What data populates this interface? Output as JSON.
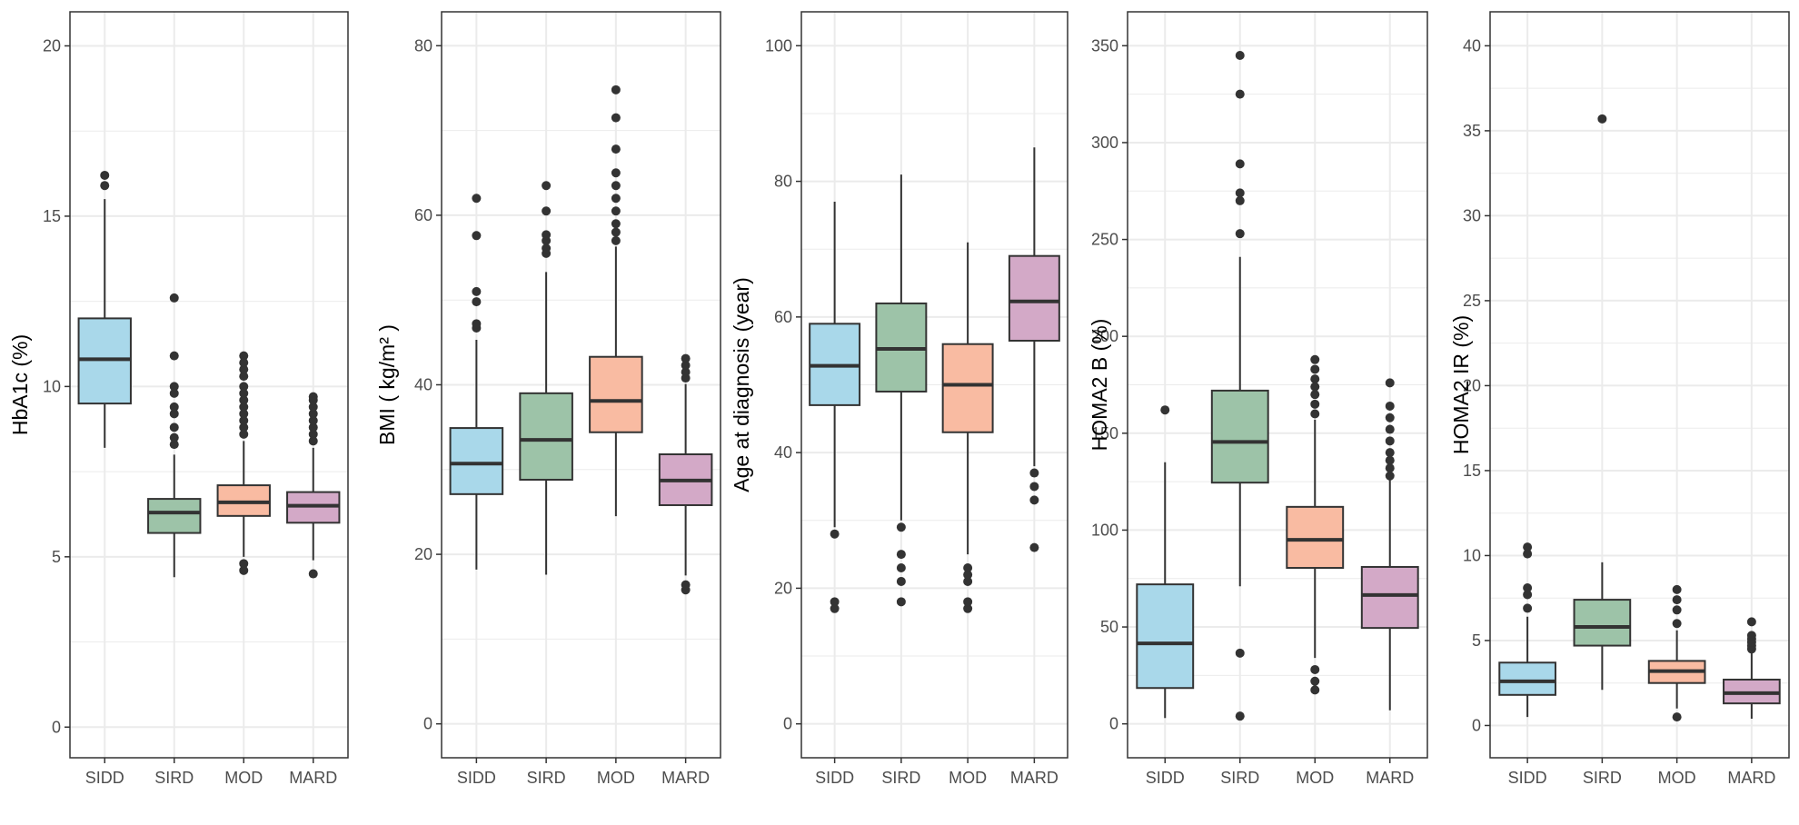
{
  "colors": {
    "SIDD": "#a9d8ea",
    "SIRD": "#9dc3a8",
    "MOD": "#f9bba2",
    "MARD": "#d3a9c7",
    "grid": "#ebebeb",
    "frame": "#333333",
    "point": "#333333"
  },
  "chart_data": [
    {
      "type": "box",
      "ylabel": "HbA1c (%)",
      "ylim": [
        -0.9,
        21
      ],
      "yticks": [
        0,
        5,
        10,
        15,
        20
      ],
      "categories": [
        "SIDD",
        "SIRD",
        "MOD",
        "MARD"
      ],
      "boxes": [
        {
          "min": 8.2,
          "q1": 9.5,
          "median": 10.8,
          "q3": 12.0,
          "max": 15.5,
          "outliers": [
            15.9,
            16.2
          ]
        },
        {
          "min": 4.4,
          "q1": 5.7,
          "median": 6.3,
          "q3": 6.7,
          "max": 8.0,
          "outliers": [
            8.3,
            8.5,
            8.8,
            9.2,
            9.4,
            9.8,
            10.0,
            10.9,
            12.6
          ]
        },
        {
          "min": 5.0,
          "q1": 6.2,
          "median": 6.6,
          "q3": 7.1,
          "max": 8.4,
          "outliers": [
            4.6,
            4.8,
            8.6,
            8.8,
            9.0,
            9.2,
            9.4,
            9.6,
            9.8,
            10.0,
            10.3,
            10.5,
            10.7,
            10.9
          ]
        },
        {
          "min": 4.9,
          "q1": 6.0,
          "median": 6.5,
          "q3": 6.9,
          "max": 8.2,
          "outliers": [
            4.5,
            8.4,
            8.6,
            8.8,
            9.0,
            9.2,
            9.4,
            9.6,
            9.7
          ]
        }
      ]
    },
    {
      "type": "box",
      "ylabel": "BMI ( kg/m² )",
      "ylim": [
        -4,
        84
      ],
      "yticks": [
        0,
        20,
        40,
        60,
        80
      ],
      "categories": [
        "SIDD",
        "SIRD",
        "MOD",
        "MARD"
      ],
      "boxes": [
        {
          "min": 18.2,
          "q1": 27.1,
          "median": 30.7,
          "q3": 34.9,
          "max": 45.3,
          "outliers": [
            46.7,
            47.2,
            49.8,
            51.0,
            57.6,
            62.0
          ]
        },
        {
          "min": 17.6,
          "q1": 28.8,
          "median": 33.5,
          "q3": 39.0,
          "max": 53.3,
          "outliers": [
            55.5,
            56.1,
            57.0,
            57.7,
            60.5,
            63.5
          ]
        },
        {
          "min": 24.5,
          "q1": 34.4,
          "median": 38.1,
          "q3": 43.3,
          "max": 56.3,
          "outliers": [
            57.0,
            58.0,
            59.0,
            60.5,
            62.0,
            63.5,
            65.0,
            67.8,
            71.5,
            74.8
          ]
        },
        {
          "min": 17.5,
          "q1": 25.8,
          "median": 28.7,
          "q3": 31.8,
          "max": 40.1,
          "outliers": [
            15.8,
            16.4,
            40.8,
            41.5,
            42.3,
            43.1
          ]
        }
      ]
    },
    {
      "type": "box",
      "ylabel": "Age at diagnosis (year)",
      "ylim": [
        -5,
        105
      ],
      "yticks": [
        0,
        20,
        40,
        60,
        80,
        100
      ],
      "categories": [
        "SIDD",
        "SIRD",
        "MOD",
        "MARD"
      ],
      "boxes": [
        {
          "min": 29.0,
          "q1": 47.0,
          "median": 52.8,
          "q3": 59.0,
          "max": 77.0,
          "outliers": [
            17.0,
            18.0,
            28.0
          ]
        },
        {
          "min": 30.0,
          "q1": 49.0,
          "median": 55.3,
          "q3": 62.0,
          "max": 81.0,
          "outliers": [
            18.0,
            21.0,
            23.0,
            25.0,
            29.0
          ]
        },
        {
          "min": 25.0,
          "q1": 43.0,
          "median": 50.0,
          "q3": 56.0,
          "max": 71.0,
          "outliers": [
            17.0,
            18.0,
            21.0,
            22.0,
            23.0
          ]
        },
        {
          "min": 38.0,
          "q1": 56.5,
          "median": 62.3,
          "q3": 69.0,
          "max": 85.0,
          "outliers": [
            26.0,
            33.0,
            35.0,
            37.0
          ]
        }
      ]
    },
    {
      "type": "box",
      "ylabel": "HOMA2 B (%)",
      "ylim": [
        -17.5,
        367.5
      ],
      "yticks": [
        0,
        50,
        100,
        150,
        200,
        250,
        300,
        350
      ],
      "categories": [
        "SIDD",
        "SIRD",
        "MOD",
        "MARD"
      ],
      "boxes": [
        {
          "min": 3.0,
          "q1": 18.5,
          "median": 41.5,
          "q3": 72.0,
          "max": 135.0,
          "outliers": [
            162.0
          ]
        },
        {
          "min": 71.0,
          "q1": 124.5,
          "median": 145.5,
          "q3": 172.0,
          "max": 241.0,
          "outliers": [
            4.0,
            36.5,
            253.0,
            270.0,
            274.0,
            289.0,
            325.0,
            345.0
          ]
        },
        {
          "min": 34.0,
          "q1": 80.5,
          "median": 95.0,
          "q3": 112.0,
          "max": 157.0,
          "outliers": [
            17.5,
            22.0,
            28.0,
            160.0,
            165.0,
            170.0,
            174.0,
            178.0,
            183.0,
            188.0
          ]
        },
        {
          "min": 7.0,
          "q1": 49.5,
          "median": 66.5,
          "q3": 81.0,
          "max": 126.0,
          "outliers": [
            128.0,
            132.0,
            136.0,
            140.0,
            146.0,
            152.0,
            158.0,
            164.0,
            176.0
          ]
        }
      ]
    },
    {
      "type": "box",
      "ylabel": "HOMA2 IR (%)",
      "ylim": [
        -1.9,
        42
      ],
      "yticks": [
        0,
        5,
        10,
        15,
        20,
        25,
        30,
        35,
        40
      ],
      "categories": [
        "SIDD",
        "SIRD",
        "MOD",
        "MARD"
      ],
      "boxes": [
        {
          "min": 0.5,
          "q1": 1.8,
          "median": 2.6,
          "q3": 3.7,
          "max": 6.4,
          "outliers": [
            6.9,
            7.7,
            8.1,
            10.1,
            10.5
          ]
        },
        {
          "min": 2.1,
          "q1": 4.7,
          "median": 5.8,
          "q3": 7.4,
          "max": 9.6,
          "outliers": [
            35.7
          ]
        },
        {
          "min": 1.0,
          "q1": 2.5,
          "median": 3.2,
          "q3": 3.8,
          "max": 5.6,
          "outliers": [
            0.5,
            6.0,
            6.8,
            7.4,
            8.0
          ]
        },
        {
          "min": 0.4,
          "q1": 1.3,
          "median": 1.9,
          "q3": 2.7,
          "max": 4.3,
          "outliers": [
            4.5,
            4.7,
            4.9,
            5.1,
            5.3,
            6.1
          ]
        }
      ]
    }
  ]
}
